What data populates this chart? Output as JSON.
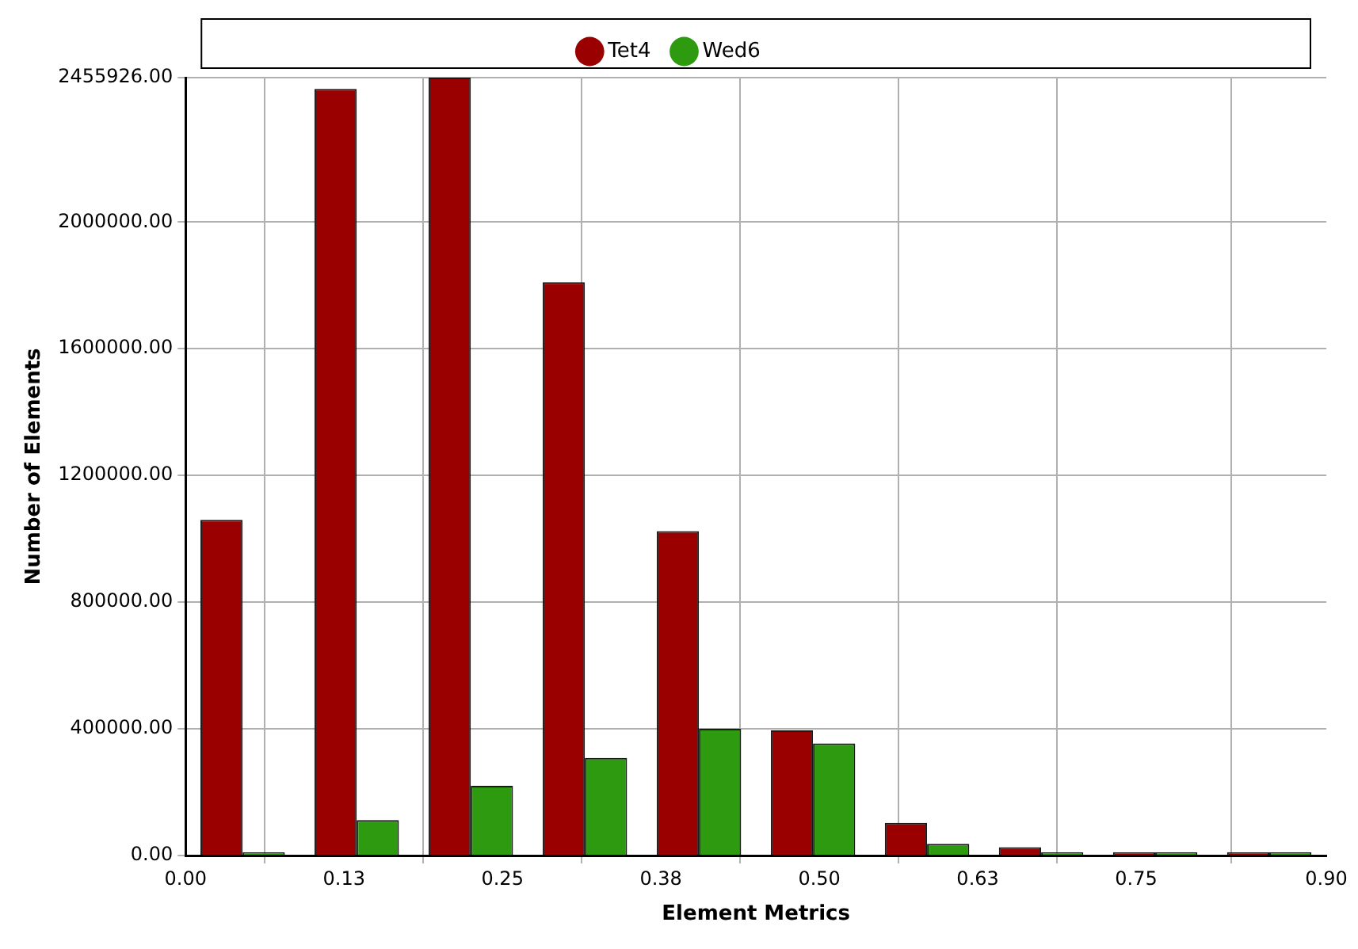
{
  "chart_data": {
    "type": "bar",
    "xlabel": "Element Metrics",
    "ylabel": "Number of Elements",
    "x": [
      0.045,
      0.135,
      0.225,
      0.315,
      0.405,
      0.495,
      0.585,
      0.675,
      0.765,
      0.855
    ],
    "series": [
      {
        "name": "Tet4",
        "color": "#9b0000",
        "values": [
          1060000,
          2420000,
          2455926,
          1810000,
          1024000,
          395000,
          103000,
          26000,
          10000,
          10000
        ]
      },
      {
        "name": "Wed6",
        "color": "#2e9a10",
        "values": [
          10000,
          112000,
          220000,
          308000,
          400000,
          354000,
          37000,
          10000,
          10000,
          10000
        ]
      }
    ],
    "xlim": [
      0,
      0.9
    ],
    "xticks": [
      {
        "value": 0,
        "label": "0.00"
      },
      {
        "value": 0.125,
        "label": "0.13"
      },
      {
        "value": 0.25,
        "label": "0.25"
      },
      {
        "value": 0.375,
        "label": "0.38"
      },
      {
        "value": 0.5,
        "label": "0.50"
      },
      {
        "value": 0.625,
        "label": "0.63"
      },
      {
        "value": 0.75,
        "label": "0.75"
      },
      {
        "value": 0.9,
        "label": "0.90"
      }
    ],
    "ylim": [
      0,
      2455926
    ],
    "yticks": [
      {
        "value": 0,
        "label": "0.00"
      },
      {
        "value": 400000,
        "label": "400000.00"
      },
      {
        "value": 800000,
        "label": "800000.00"
      },
      {
        "value": 1200000,
        "label": "1200000.00"
      },
      {
        "value": 1600000,
        "label": "1600000.00"
      },
      {
        "value": 2000000,
        "label": "2000000.00"
      },
      {
        "value": 2455926,
        "label": "2455926.00"
      }
    ],
    "grid": true,
    "legend": "top",
    "marker": "circle"
  }
}
